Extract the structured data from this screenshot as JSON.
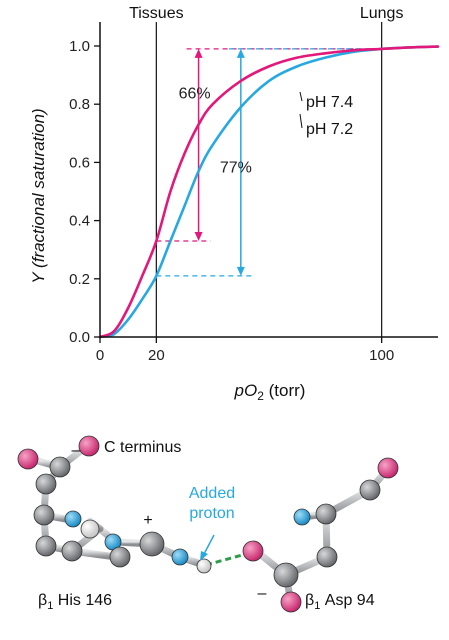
{
  "chart_data": {
    "type": "line",
    "ylabel": "Y (fractional saturation)",
    "xlabel": "pO",
    "xlabel_sub": "2",
    "xlabel_suffix": " (torr)",
    "xlim": [
      0,
      120
    ],
    "ylim": [
      0,
      1.0
    ],
    "x_ticks": [
      0,
      20,
      100
    ],
    "y_ticks": [
      "0.0",
      "0.2",
      "0.4",
      "0.6",
      "0.8",
      "1.0"
    ],
    "y_tick_values": [
      0.0,
      0.2,
      0.4,
      0.6,
      0.8,
      1.0
    ],
    "grid": false,
    "series": [
      {
        "name": "pH 7.4",
        "color": "#e2187b",
        "x": [
          0,
          5,
          10,
          15,
          20,
          25,
          30,
          35,
          40,
          50,
          60,
          70,
          80,
          90,
          100,
          110,
          120
        ],
        "y": [
          0.0,
          0.02,
          0.1,
          0.21,
          0.33,
          0.5,
          0.63,
          0.73,
          0.8,
          0.88,
          0.93,
          0.96,
          0.975,
          0.985,
          0.99,
          0.995,
          0.998
        ]
      },
      {
        "name": "pH 7.2",
        "color": "#27a8e0",
        "x": [
          0,
          5,
          10,
          15,
          20,
          25,
          30,
          35,
          40,
          50,
          60,
          70,
          80,
          90,
          100,
          110,
          120
        ],
        "y": [
          0.0,
          0.01,
          0.06,
          0.13,
          0.21,
          0.33,
          0.45,
          0.57,
          0.66,
          0.79,
          0.88,
          0.93,
          0.96,
          0.98,
          0.99,
          0.995,
          0.998
        ]
      }
    ],
    "markers": [
      {
        "label": "Tissues",
        "x": 20
      },
      {
        "label": "Lungs",
        "x": 100
      }
    ],
    "annotations": [
      {
        "label": "66%",
        "series": "pH 7.4",
        "color": "#e2187b",
        "arrow_x": 35,
        "from_y": 0.33,
        "to_y": 0.99
      },
      {
        "label": "77%",
        "series": "pH 7.2",
        "color": "#27a8e0",
        "arrow_x": 50,
        "from_y": 0.21,
        "to_y": 0.99
      }
    ]
  },
  "structure": {
    "c_terminus_label": "C terminus",
    "minus_top": "–",
    "plus": "+",
    "minus_bottom": "–",
    "added_proton_line1": "Added",
    "added_proton_line2": "proton",
    "his_label_prefix": "β",
    "his_label_sub": "1",
    "his_label_suffix": " His 146",
    "asp_label_prefix": "β",
    "asp_label_sub": "1",
    "asp_label_suffix": " Asp 94",
    "colors": {
      "oxygen": "#d6337a",
      "nitrogen": "#1e9fd8",
      "carbon": "#8d8f93",
      "hydrogen": "#f1f1f1",
      "hbond": "#2e9e4a"
    }
  }
}
